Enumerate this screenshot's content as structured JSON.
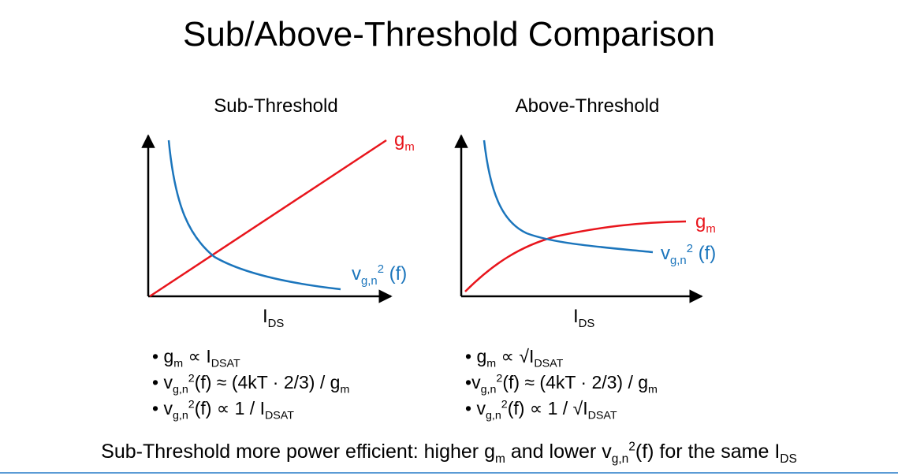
{
  "title": "Sub/Above-Threshold Comparison",
  "plots": [
    {
      "title": "Sub-Threshold",
      "gm_label": {
        "base": "g",
        "sub": "m"
      },
      "vgn_label": {
        "base": "v",
        "sub": "g,n",
        "sup": "2",
        "tail": " (f)"
      },
      "xlabel": {
        "base": "I",
        "sub": "DS"
      }
    },
    {
      "title": "Above-Threshold",
      "gm_label": {
        "base": "g",
        "sub": "m"
      },
      "vgn_label": {
        "base": "v",
        "sub": "g,n",
        "sup": "2",
        "tail": " (f)"
      },
      "xlabel": {
        "base": "I",
        "sub": "DS"
      }
    }
  ],
  "bullets_left": [
    {
      "bullet": "•",
      "a": "g",
      "a_sub": "m",
      "mid": " ∝ I",
      "b_sub": "DSAT"
    },
    {
      "bullet": "•",
      "a": "v",
      "a_sub": "g,n",
      "a_sup": "2",
      "mid": "(f) ≈ (4kT · 2/3) / g",
      "b_sub": "m"
    },
    {
      "bullet": "•",
      "a": "v",
      "a_sub": "g,n",
      "a_sup": "2",
      "mid": "(f) ∝ 1 / I",
      "b_sub": "DSAT"
    }
  ],
  "bullets_right": [
    {
      "bullet": "•",
      "a": "g",
      "a_sub": "m",
      "mid": " ∝ √I",
      "b_sub": "DSAT"
    },
    {
      "bullet": "•",
      "a": "v",
      "a_sub": "g,n",
      "a_sup": "2",
      "mid": "(f) ≈ (4kT · 2/3) / g",
      "b_sub": "m"
    },
    {
      "bullet": "•",
      "a": "v",
      "a_sub": "g,n",
      "a_sup": "2",
      "mid": "(f) ∝ 1 / √I",
      "b_sub": "DSAT"
    }
  ],
  "conclusion": {
    "p1": "Sub-Threshold more power efficient: higher g",
    "s1": "m",
    "p2": " and lower v",
    "s2": "g,n",
    "sup2": "2",
    "p3": "(f) for the same I",
    "s3": "DS"
  },
  "colors": {
    "gm": "#e8151c",
    "vgn": "#1b75bc",
    "axis": "#000000"
  }
}
